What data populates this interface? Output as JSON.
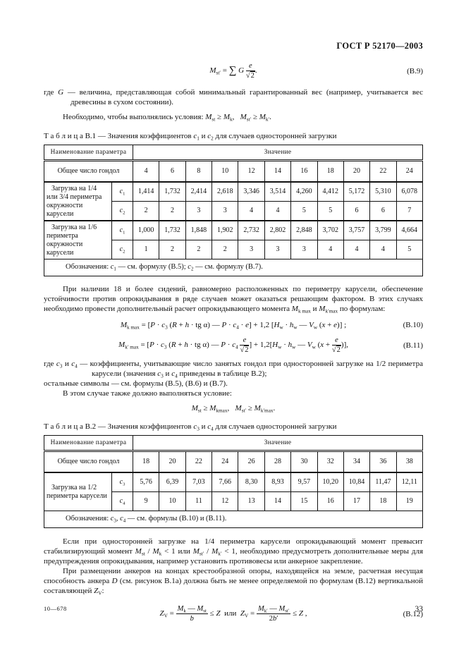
{
  "page": {
    "header": "ГОСТ Р 52170—2003",
    "footer_left": "10—678",
    "page_number": "33"
  },
  "formulas": {
    "b9_html": "<i>M</i><sub>st′</sub> = <bg>∑</bg> <i>G</i> <fr><ft><i>e</i></ft><fb>√<rd>2</rd></fb></fr>.",
    "b9_num": "(В.9)",
    "b10_html": "<i>M</i><sub>k max</sub> = [<i>P</i> · <i>c</i><sub>3</sub> (<i>R</i> + <i>h</i> · tg α) — <i>P</i> · <i>c</i><sub>4</sub> · <i>e</i>] + 1,2 [<i>H</i><sub>w</sub> · <i>h</i><sub>w</sub> — <i>V</i><sub>w</sub> (<i>x</i> + <i>e</i>)] ;",
    "b10_num": "(В.10)",
    "b11_html": "<i>M</i><sub>k′ max</sub> = [<i>P</i> · <i>c</i><sub>3</sub> (<i>R</i> + <i>h</i> · tg α) — <i>P</i> · <i>c</i><sub>4</sub> <fr><ft><i>e</i></ft><fb>√<rd>2</rd></fb></fr>] + 1,2[<i>H</i><sub>w</sub> · <i>h</i><sub>w</sub> — <i>V</i><sub>w</sub> (<i>x</i> + <fr><ft><i>e</i></ft><fb>√<rd>2</rd></fb></fr>)],",
    "b11_num": "(В.11)",
    "b12_html": "<i>Z</i><sub>V</sub> = <fr><ft><i>M</i><sub>k</sub> — <i>M</i><sub>st</sub></ft><fb><i>b</i></fb></fr> ≤ <i>Z</i> &nbsp;или&nbsp; <i>Z</i><sub>V</sub> = <fr><ft><i>M</i><sub>k′</sub> — <i>M</i><sub>st′</sub></ft><fb>2<i>b</i>′</fb></fr> ≤ <i>Z</i> ,",
    "b12_num": "(В.12)",
    "cond2_html": "<i>M</i><sub>st</sub> ≥ <i>M</i><sub>kmax</sub>, &nbsp;&nbsp;<i>M</i><sub>st′</sub> ≥ <i>M</i><sub>k′max</sub>."
  },
  "paragraphs": {
    "g_def_html": "где <i>G</i> — величина, представляющая собой минимальный гарантированный вес (например, учитывается вес древесины в сухом состоянии).",
    "conditions_html": "Необходимо, чтобы выполнялись условия: <i>M</i><sub>st</sub> ≥ <i>M</i><sub>k</sub>, &nbsp;&nbsp;<i>M</i><sub>st′</sub> ≥ <i>M</i><sub>k′</sub>.",
    "p18_html": "При наличии 18 и более сидений, равномерно расположенных по периметру карусели, обеспечение устойчивости против опрокидывания в ряде случаев может оказаться решающим фактором. В этих случаях необходимо провести дополнительный расчет опрокидывающего момента <i>M</i><sub>k max</sub> и <i>M</i><sub>k′max</sub> по формулам:",
    "c34_html": "где <i>c</i><sub>3</sub> и <i>c</i><sub>4</sub> — коэффициенты, учитывающие число занятых гондол при односторонней загрузке на 1/2 периметра карусели (значения <i>c</i><sub>3</sub> и <i>c</i><sub>4</sub> приведены в таблице В.2);",
    "others_html": "остальные символы — см. формулы (В.5), (В.6) и (В.7).",
    "case_html": "В этом случае также должно выполняться условие:",
    "overturn_html": "Если при односторонней загрузке на 1/4 периметра карусели опрокидывающий момент превысит стабилизирующий момент <i>M</i><sub>st</sub> / <i>M</i><sub>k</sub> &lt; 1 или <i>M</i><sub>st′</sub> / <i>M</i><sub>k′</sub> &lt; 1, необходимо предусмотреть дополнительные меры для предупреждения опрокидывания, например установить противовесы или анкерное закрепление.",
    "anchors_html": "При размещении анкеров на концах крестообразной опоры, находящейся на земле, расчетная несущая способность анкера <i>D</i> (см. рисунок В.1а) должна быть не менее определяемой по формулам (В.12) вертикальной составляющей <i>Z</i><sub>V</sub>:"
  },
  "table_b1": {
    "caption_html": "Т а б л и ц а  В.1 — Значения коэффициентов <i>c</i><sub>1</sub> и <i>c</i><sub>2</sub> для случаев односторонней загрузки",
    "param_header": "Наименование параметра",
    "value_header": "Значение",
    "gondola_label": "Общее число гондол",
    "gondolas": [
      "4",
      "6",
      "8",
      "10",
      "12",
      "14",
      "16",
      "18",
      "20",
      "22",
      "24"
    ],
    "group1_label": "Загрузка на 1/4 или 3/4 периметра окружности карусели",
    "c1_html": "<i>c</i><sub>1</sub>",
    "c2_html": "<i>c</i><sub>2</sub>",
    "g1_c1": [
      "1,414",
      "1,732",
      "2,414",
      "2,618",
      "3,346",
      "3,514",
      "4,260",
      "4,412",
      "5,172",
      "5,310",
      "6,078"
    ],
    "g1_c2": [
      "2",
      "2",
      "3",
      "3",
      "4",
      "4",
      "5",
      "5",
      "6",
      "6",
      "7"
    ],
    "group2_label": "Загрузка на 1/6 периметра окружности карусели",
    "g2_c1": [
      "1,000",
      "1,732",
      "1,848",
      "1,902",
      "2,732",
      "2,802",
      "2,848",
      "3,702",
      "3,757",
      "3,799",
      "4,664"
    ],
    "g2_c2": [
      "1",
      "2",
      "2",
      "2",
      "3",
      "3",
      "3",
      "4",
      "4",
      "4",
      "5"
    ],
    "footnote_html": "Обозначения: <i>c</i><sub>1</sub> — см. формулу (В.5); <i>c</i><sub>2</sub> — см. формулу (В.7)."
  },
  "table_b2": {
    "caption_html": "Т а б л и ц а  В.2 — Значения коэффициентов <i>c</i><sub>3</sub> и <i>c</i><sub>4</sub> для случаев односторонней загрузки",
    "param_header": "Наименование параметра",
    "value_header": "Значение",
    "gondola_label": "Общее число гондол",
    "gondolas": [
      "18",
      "20",
      "22",
      "24",
      "26",
      "28",
      "30",
      "32",
      "34",
      "36",
      "38"
    ],
    "group_label": "Загрузка на 1/2 периметра карусели",
    "c3_html": "<i>c</i><sub>3</sub>",
    "c4_html": "<i>c</i><sub>4</sub>",
    "c3": [
      "5,76",
      "6,39",
      "7,03",
      "7,66",
      "8,30",
      "8,93",
      "9,57",
      "10,20",
      "10,84",
      "11,47",
      "12,11"
    ],
    "c4": [
      "9",
      "10",
      "11",
      "12",
      "13",
      "14",
      "15",
      "16",
      "17",
      "18",
      "19"
    ],
    "footnote_html": "Обозначения: <i>c</i><sub>3</sub>, <i>c</i><sub>4</sub> — см. формулы (В.10) и (В.11)."
  }
}
